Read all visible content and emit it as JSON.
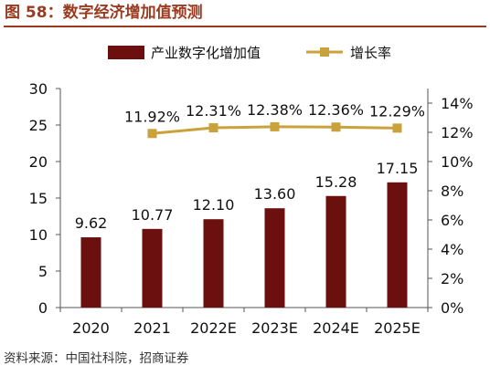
{
  "figure": {
    "title": "图 58：数字经济增加值预测",
    "source": "资料来源：中国社科院，招商证券"
  },
  "colors": {
    "title": "#9b3a1e",
    "bar": "#6b0f0f",
    "line": "#c9a23b",
    "axis": "#555555",
    "text": "#111111"
  },
  "chart_data": {
    "type": "bar",
    "categories": [
      "2020",
      "2021",
      "2022E",
      "2023E",
      "2024E",
      "2025E"
    ],
    "series": [
      {
        "name": "产业数字化增加值",
        "type": "bar",
        "axis": "left",
        "values": [
          9.62,
          10.77,
          12.1,
          13.6,
          15.28,
          17.15
        ],
        "labels": [
          "9.62",
          "10.77",
          "12.10",
          "13.60",
          "15.28",
          "17.15"
        ]
      },
      {
        "name": "增长率",
        "type": "line",
        "axis": "right",
        "values": [
          null,
          11.92,
          12.31,
          12.38,
          12.36,
          12.29
        ],
        "labels": [
          "",
          "11.92%",
          "12.31%",
          "12.38%",
          "12.36%",
          "12.29%"
        ]
      }
    ],
    "y_left": {
      "min": 0,
      "max": 30,
      "ticks": [
        "0",
        "5",
        "10",
        "15",
        "20",
        "25",
        "30"
      ]
    },
    "y_right": {
      "min": 0,
      "max": 15,
      "ticks": [
        "0%",
        "2%",
        "4%",
        "6%",
        "8%",
        "10%",
        "12%",
        "14%"
      ],
      "tick_values": [
        0,
        2,
        4,
        6,
        8,
        10,
        12,
        14
      ]
    },
    "legend": "top-center",
    "grid": false
  }
}
